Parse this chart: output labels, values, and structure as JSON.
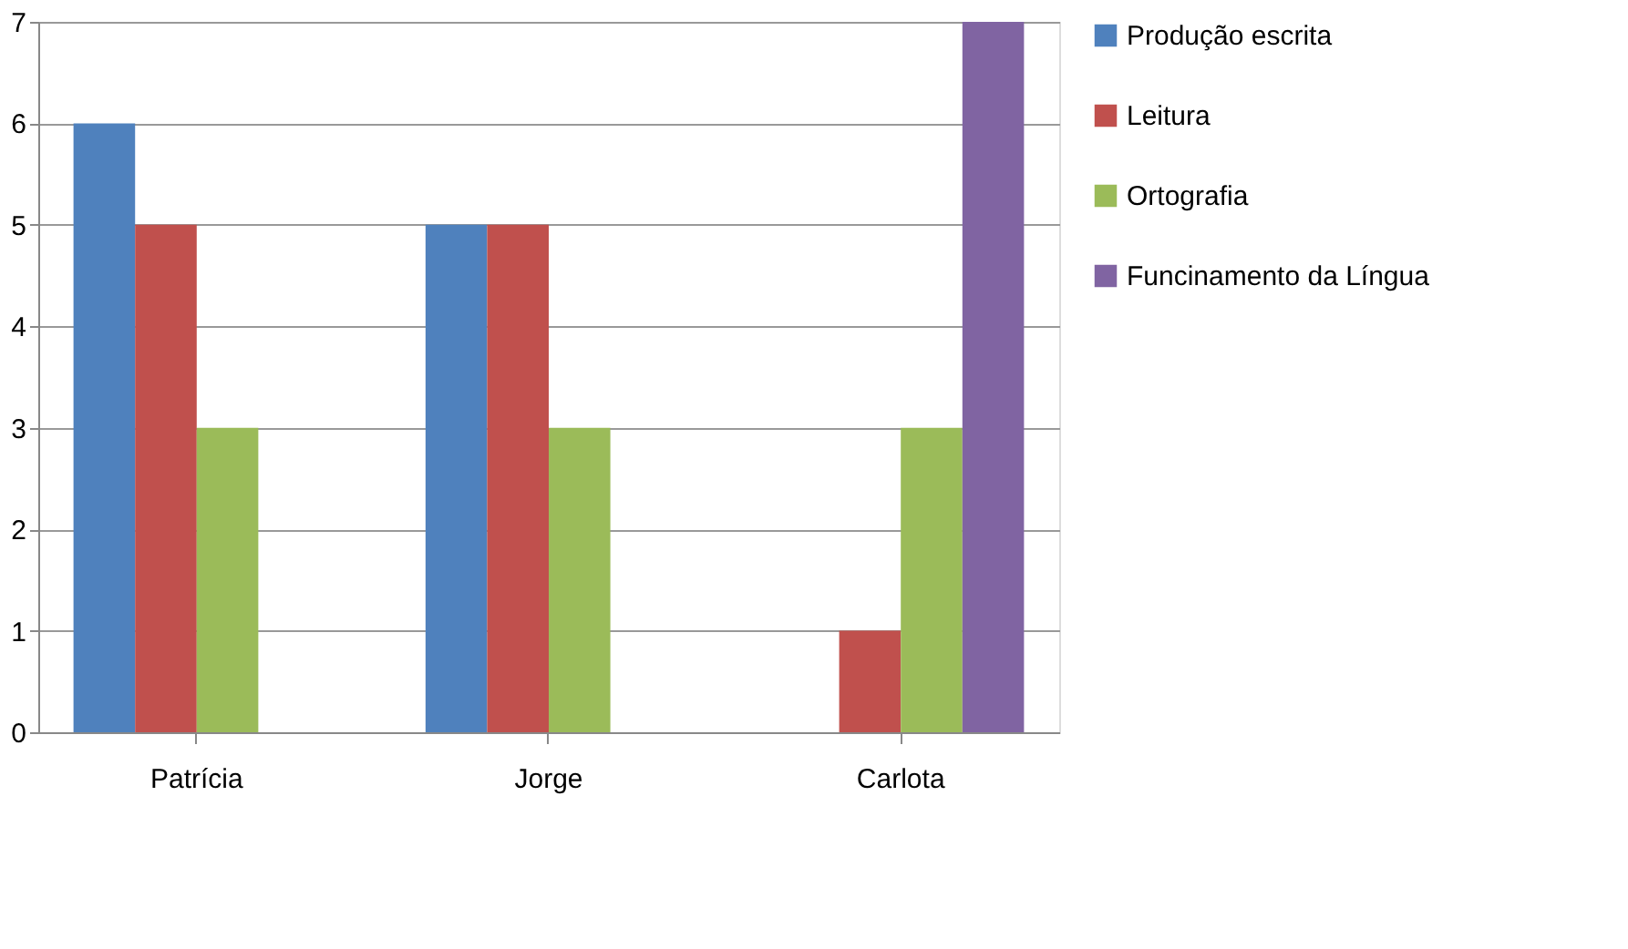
{
  "chart_data": {
    "type": "bar",
    "categories": [
      "Patrícia",
      "Jorge",
      "Carlota"
    ],
    "series": [
      {
        "name": "Produção escrita",
        "color": "#4f81bd",
        "values": [
          6,
          5,
          null
        ]
      },
      {
        "name": "Leitura",
        "color": "#c0504d",
        "values": [
          5,
          5,
          1
        ]
      },
      {
        "name": "Ortografia",
        "color": "#9bbb59",
        "values": [
          3,
          3,
          3
        ]
      },
      {
        "name": "Funcinamento da Língua",
        "color": "#8064a2",
        "values": [
          null,
          null,
          7
        ]
      }
    ],
    "ylim": [
      0,
      7
    ],
    "yticks": [
      0,
      1,
      2,
      3,
      4,
      5,
      6,
      7
    ],
    "grid": "y",
    "legend": "right"
  }
}
